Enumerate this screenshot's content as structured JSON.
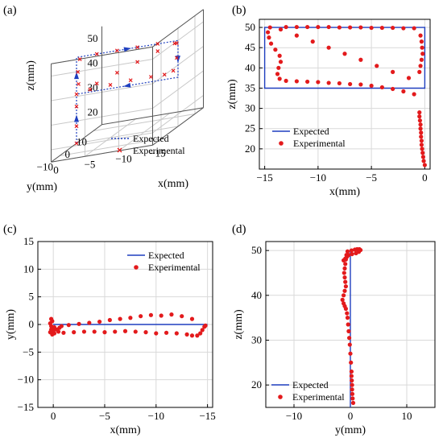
{
  "chart_data": [
    {
      "panel": "(a)",
      "type": "scatter",
      "projection": "3d",
      "xlabel": "x(mm)",
      "ylabel": "y(mm)",
      "zlabel": "z(mm)",
      "xticks": [
        "0",
        "−5",
        "−10",
        "−15"
      ],
      "yticks": [
        "10",
        "0",
        "−10"
      ],
      "zticks": [
        "20",
        "30",
        "40",
        "50"
      ],
      "xlim": [
        0,
        -15
      ],
      "ylim": [
        15,
        -15
      ],
      "zlim": [
        15,
        55
      ],
      "grid": true,
      "legend": {
        "position": "lower-right",
        "entries": [
          "Expected",
          "Experimental"
        ]
      },
      "series": [
        {
          "name": "Expected",
          "style": "dotted line with arrows",
          "color": "#1f3fbf",
          "points": [
            [
              0,
              0,
              15
            ],
            [
              0,
              0,
              35
            ],
            [
              0,
              0,
              50
            ],
            [
              -15,
              0,
              50
            ],
            [
              -15,
              0,
              35
            ],
            [
              0,
              0,
              35
            ]
          ]
        },
        {
          "name": "Experimental",
          "style": "x markers",
          "color": "#e31a1c",
          "points": [
            [
              0,
              0,
              15
            ],
            [
              0,
              0,
              22
            ],
            [
              0,
              0,
              30
            ],
            [
              0,
              0,
              35
            ],
            [
              -2,
              0,
              36
            ],
            [
              -5,
              0,
              36.5
            ],
            [
              -8,
              0,
              37
            ],
            [
              -11,
              0,
              37
            ],
            [
              -13,
              0,
              37
            ],
            [
              -14.3,
              0,
              38
            ],
            [
              -14.8,
              0,
              43
            ],
            [
              -14.8,
              0,
              49
            ],
            [
              -12,
              0,
              50
            ],
            [
              -9,
              0,
              50
            ],
            [
              -6,
              0,
              50
            ],
            [
              -3,
              0,
              50
            ],
            [
              -0.5,
              0,
              49
            ],
            [
              -0.2,
              0,
              44
            ],
            [
              -0.3,
              0,
              39
            ],
            [
              -3,
              0,
              38
            ],
            [
              -6,
              0,
              41
            ],
            [
              -9,
              0,
              44
            ],
            [
              -12,
              0,
              47
            ],
            [
              -14.5,
              0,
              49
            ]
          ]
        }
      ]
    },
    {
      "panel": "(b)",
      "type": "scatter",
      "xlabel": "x(mm)",
      "ylabel": "z(mm)",
      "xlim": [
        -15.5,
        0.5
      ],
      "ylim": [
        15,
        52
      ],
      "xticks": [
        -15,
        -10,
        -5,
        0
      ],
      "yticks": [
        20,
        25,
        30,
        35,
        40,
        45,
        50
      ],
      "xtick_labels": [
        "−15",
        "−10",
        "−5",
        "0"
      ],
      "grid": true,
      "legend": {
        "position": "lower-left",
        "entries": [
          "Expected",
          "Experimental"
        ]
      },
      "series": [
        {
          "name": "Expected",
          "type": "line",
          "color": "#1f3fbf",
          "x": [
            0,
            -15,
            -15,
            0,
            0,
            -15
          ],
          "y": [
            50,
            50,
            35,
            35,
            50,
            50
          ]
        },
        {
          "name": "Experimental",
          "type": "scatter",
          "color": "#e31a1c",
          "x": [
            0,
            -0.1,
            -0.15,
            -0.2,
            -0.25,
            -0.3,
            -0.3,
            -0.35,
            -0.35,
            -0.4,
            -0.4,
            -0.45,
            -0.5,
            -0.5,
            -1.0,
            -2.0,
            -3.0,
            -4.0,
            -5.0,
            -6.0,
            -7.0,
            -8.0,
            -9.0,
            -10.0,
            -11.0,
            -12.0,
            -13.0,
            -13.6,
            -13.8,
            -13.7,
            -13.5,
            -13.6,
            -14.0,
            -14.4,
            -14.6,
            -14.7,
            -14.5,
            -13.0,
            -12.0,
            -11.0,
            -10.0,
            -9.0,
            -8.0,
            -7.0,
            -6.0,
            -5.0,
            -4.0,
            -3.0,
            -2.0,
            -1.0,
            -0.4,
            -0.3,
            -0.25,
            -0.2,
            -0.3,
            -0.4,
            -0.5,
            -1.5,
            -3.0,
            -4.5,
            -6.0,
            -7.5,
            -9.0,
            -10.5,
            -12.0,
            -13.5
          ],
          "y": [
            16,
            17,
            18,
            19,
            20,
            21,
            22,
            23,
            24,
            25,
            26,
            27,
            28,
            29,
            33.5,
            34.2,
            34.8,
            35.2,
            35.6,
            35.9,
            36.0,
            36.2,
            36.3,
            36.5,
            36.6,
            36.7,
            36.8,
            37.3,
            38.5,
            40.0,
            41.5,
            43.0,
            44.5,
            46.0,
            47.5,
            48.8,
            50.0,
            50.1,
            50.1,
            50.1,
            50.1,
            50.1,
            50.0,
            50.0,
            50.0,
            49.9,
            49.9,
            49.9,
            49.8,
            49.8,
            48.0,
            46.5,
            45.0,
            43.5,
            42.0,
            40.5,
            39.0,
            37.5,
            39.0,
            40.5,
            42.0,
            43.5,
            45.0,
            46.5,
            48.0,
            49.5
          ]
        }
      ]
    },
    {
      "panel": "(c)",
      "type": "scatter",
      "xlabel": "x(mm)",
      "ylabel": "y(mm)",
      "xlim": [
        1.5,
        -15.5
      ],
      "ylim": [
        -15,
        15
      ],
      "xticks": [
        0,
        -5,
        -10,
        -15
      ],
      "yticks": [
        -15,
        -10,
        -5,
        0,
        5,
        10,
        15
      ],
      "xtick_labels": [
        "0",
        "−5",
        "−10",
        "−15"
      ],
      "ytick_labels": [
        "−15",
        "−10",
        "−5",
        "0",
        "5",
        "10",
        "15"
      ],
      "grid": true,
      "legend": {
        "position": "top-right",
        "entries": [
          "Expected",
          "Experimental"
        ]
      },
      "series": [
        {
          "name": "Expected",
          "type": "line",
          "color": "#1f3fbf",
          "x": [
            0,
            -15
          ],
          "y": [
            0,
            0
          ]
        },
        {
          "name": "Experimental",
          "type": "scatter",
          "color": "#e31a1c",
          "x": [
            0.2,
            0.1,
            0.3,
            0.2,
            0.1,
            0.0,
            -0.1,
            0.1,
            0.3,
            0.2,
            -0.1,
            -0.3,
            -0.5,
            -0.6,
            -1.0,
            -2.0,
            -3.0,
            -4.0,
            -5.0,
            -6.0,
            -7.0,
            -8.0,
            -9.0,
            -10.0,
            -11.0,
            -12.0,
            -13.0,
            -13.5,
            -14.0,
            -14.3,
            -14.5,
            -14.7,
            -14.8,
            -13.5,
            -12.5,
            -11.5,
            -10.5,
            -9.5,
            -8.5,
            -7.5,
            -6.5,
            -5.5,
            -4.5,
            -3.5,
            -2.5,
            -1.5,
            -0.8
          ],
          "y": [
            1.0,
            0.6,
            0.2,
            -0.3,
            -0.7,
            -1.2,
            -1.6,
            -1.8,
            -1.4,
            -0.9,
            -0.5,
            -0.9,
            -1.3,
            -0.6,
            -1.5,
            -1.4,
            -1.3,
            -1.3,
            -1.4,
            -1.3,
            -1.2,
            -1.3,
            -1.4,
            -1.6,
            -1.5,
            -1.6,
            -1.8,
            -2.0,
            -2.0,
            -1.6,
            -1.0,
            -0.4,
            -0.2,
            1.0,
            1.5,
            1.8,
            1.6,
            1.7,
            1.5,
            1.2,
            1.0,
            0.8,
            0.5,
            0.3,
            0.1,
            -0.1,
            -0.3
          ]
        }
      ]
    },
    {
      "panel": "(d)",
      "type": "scatter",
      "xlabel": "y(mm)",
      "ylabel": "z(mm)",
      "xlim": [
        -15,
        15
      ],
      "ylim": [
        15,
        52
      ],
      "xticks": [
        -10,
        0,
        10
      ],
      "yticks": [
        20,
        30,
        40,
        50
      ],
      "xtick_labels": [
        "−10",
        "0",
        "10"
      ],
      "grid": true,
      "legend": {
        "position": "lower-left",
        "entries": [
          "Expected",
          "Experimental"
        ]
      },
      "series": [
        {
          "name": "Expected",
          "type": "line",
          "color": "#1f3fbf",
          "x": [
            0,
            0,
            0
          ],
          "y": [
            15,
            35,
            50
          ]
        },
        {
          "name": "Experimental",
          "type": "scatter",
          "color": "#e31a1c",
          "x": [
            0.5,
            0.4,
            0.35,
            0.3,
            0.3,
            0.25,
            0.2,
            0.2,
            0.1,
            0.0,
            -0.1,
            -0.2,
            -0.3,
            -0.4,
            -0.5,
            -0.6,
            -0.8,
            -1.0,
            -1.2,
            -1.4,
            -1.2,
            -1.0,
            -0.8,
            -0.9,
            -1.0,
            -1.1,
            -1.0,
            -0.9,
            -0.8,
            -0.7,
            -0.5,
            0.2,
            0.8,
            1.2,
            1.6,
            1.8,
            1.5,
            1.0,
            0.3,
            -0.3,
            -0.6,
            -0.9,
            -1.2
          ],
          "y": [
            16,
            17,
            18,
            19,
            20,
            21,
            22,
            23,
            25,
            27,
            29,
            30.5,
            32,
            33.5,
            35,
            36,
            37,
            37.6,
            38.2,
            39.0,
            40.0,
            41.0,
            42.0,
            43.0,
            44.0,
            45.0,
            46.0,
            47.0,
            48.0,
            49.0,
            49.8,
            50.0,
            50.2,
            50.3,
            50.3,
            50.1,
            49.7,
            49.4,
            49.2,
            49.0,
            48.6,
            48.2,
            47.8
          ]
        }
      ]
    }
  ]
}
